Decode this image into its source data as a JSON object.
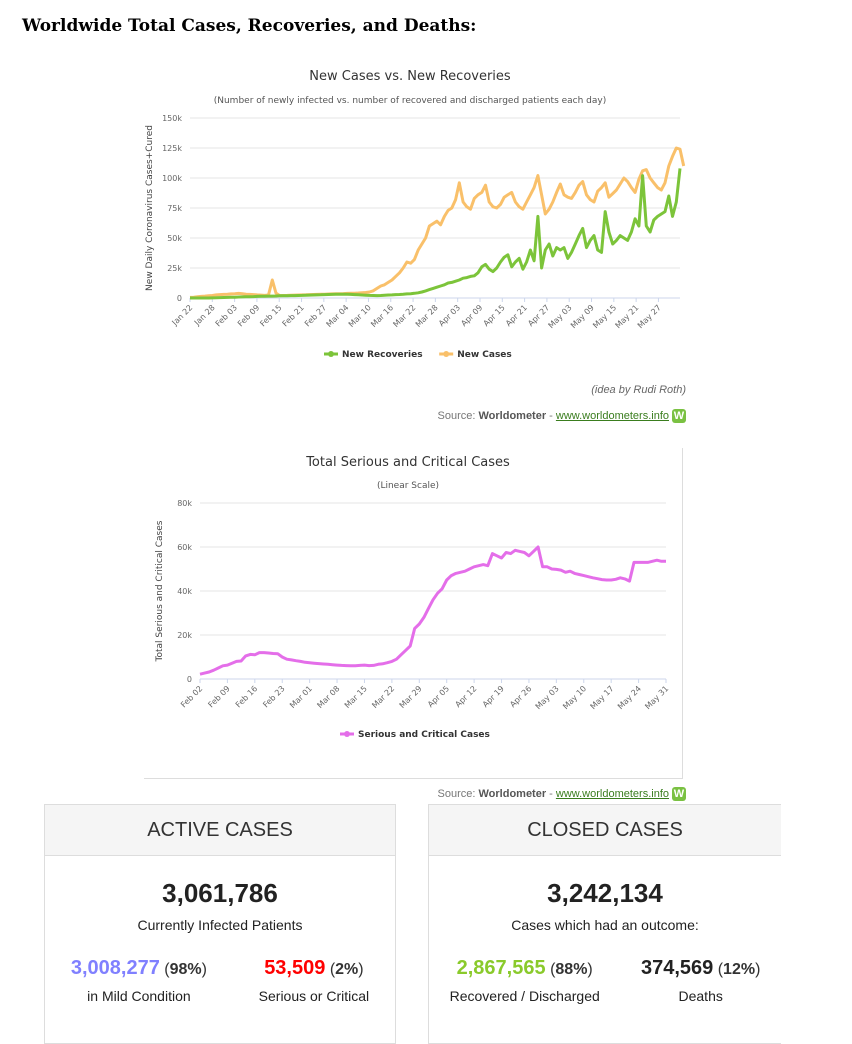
{
  "heading": "Worldwide Total Cases, Recoveries, and Deaths:",
  "chart_data": [
    {
      "type": "line",
      "title": "New Cases vs. New Recoveries",
      "subtitle": "(Number of newly infected vs. number of recovered and discharged patients each day)",
      "ylabel": "New Daily Coronavirus Cases+Cured",
      "xlabel": "",
      "ylim": [
        0,
        150000
      ],
      "yticks": [
        0,
        25000,
        50000,
        75000,
        100000,
        125000,
        150000
      ],
      "ytick_labels": [
        "0",
        "25k",
        "50k",
        "75k",
        "100k",
        "125k",
        "150k"
      ],
      "xtick_labels": [
        "Jan 22",
        "Jan 28",
        "Feb 03",
        "Feb 09",
        "Feb 15",
        "Feb 21",
        "Feb 27",
        "Mar 04",
        "Mar 10",
        "Mar 16",
        "Mar 22",
        "Mar 28",
        "Apr 03",
        "Apr 09",
        "Apr 15",
        "Apr 21",
        "Apr 27",
        "May 03",
        "May 09",
        "May 15",
        "May 21",
        "May 27"
      ],
      "grid": true,
      "legend": "bottom-center",
      "series": [
        {
          "name": "New Recoveries",
          "color": "#7cc43a",
          "values": [
            0,
            0,
            0,
            0,
            0,
            0,
            100,
            200,
            300,
            400,
            500,
            600,
            700,
            800,
            900,
            1000,
            1100,
            1200,
            1300,
            1500,
            1500,
            1600,
            1600,
            1700,
            1800,
            1800,
            1900,
            2000,
            2000,
            2100,
            2200,
            2300,
            2400,
            2500,
            2600,
            2700,
            2800,
            2900,
            3000,
            3100,
            3100,
            3200,
            3200,
            3000,
            2800,
            2700,
            2500,
            2300,
            2200,
            2100,
            2000,
            2100,
            2300,
            2500,
            2600,
            2800,
            2900,
            3100,
            3400,
            3600,
            3900,
            4300,
            5000,
            5900,
            7000,
            8000,
            9000,
            10000,
            11000,
            12500,
            13000,
            14000,
            15000,
            16500,
            17000,
            18000,
            18500,
            21000,
            26000,
            28000,
            24000,
            22000,
            25000,
            30000,
            34000,
            36000,
            26000,
            30000,
            33000,
            24000,
            30000,
            40000,
            31000,
            68000,
            25000,
            40000,
            45000,
            35000,
            42000,
            40000,
            42000,
            33000,
            38000,
            45000,
            52000,
            58000,
            42000,
            48000,
            52000,
            40000,
            38000,
            72000,
            55000,
            45000,
            48000,
            52000,
            50000,
            48000,
            55000,
            66000,
            60000,
            102000,
            60000,
            55000,
            65000,
            68000,
            70000,
            72000,
            85000,
            68000,
            80000,
            108000
          ]
        },
        {
          "name": "New Cases",
          "color": "#f9c06a",
          "values": [
            500,
            700,
            1000,
            1300,
            1600,
            1900,
            2100,
            2600,
            2800,
            3000,
            3200,
            3400,
            3600,
            3800,
            3500,
            3200,
            3000,
            2800,
            2600,
            2400,
            2200,
            2500,
            15000,
            4000,
            2000,
            2100,
            2200,
            2300,
            2400,
            2500,
            2600,
            2700,
            2800,
            2900,
            3000,
            3100,
            3200,
            3300,
            3400,
            3500,
            3600,
            3700,
            3800,
            3900,
            4000,
            4200,
            4400,
            4600,
            5000,
            6000,
            8000,
            10000,
            11000,
            13000,
            15000,
            18000,
            21000,
            25000,
            30000,
            29000,
            32000,
            40000,
            45000,
            50000,
            60000,
            62000,
            64000,
            61000,
            68000,
            73000,
            75000,
            82000,
            96000,
            80000,
            76000,
            74000,
            83000,
            86000,
            88000,
            94000,
            80000,
            76000,
            75000,
            78000,
            84000,
            86000,
            88000,
            80000,
            76000,
            74000,
            80000,
            86000,
            92000,
            102000,
            86000,
            70000,
            74000,
            80000,
            88000,
            95000,
            86000,
            84000,
            83000,
            88000,
            94000,
            97000,
            86000,
            82000,
            80000,
            89000,
            92000,
            96000,
            84000,
            87000,
            90000,
            95000,
            100000,
            97000,
            92000,
            88000,
            99000,
            106000,
            107000,
            100000,
            96000,
            92000,
            90000,
            96000,
            110000,
            118000,
            125000,
            124000,
            110000
          ]
        }
      ],
      "annotation": "(idea by Rudi Roth)"
    },
    {
      "type": "line",
      "title": "Total Serious and Critical Cases",
      "subtitle": "(Linear Scale)",
      "ylabel": "Total Serious and Critical Cases",
      "xlabel": "",
      "ylim": [
        0,
        80000
      ],
      "yticks": [
        0,
        20000,
        40000,
        60000,
        80000
      ],
      "ytick_labels": [
        "0",
        "20k",
        "40k",
        "60k",
        "80k"
      ],
      "xtick_labels": [
        "Feb 02",
        "Feb 09",
        "Feb 16",
        "Feb 23",
        "Mar 01",
        "Mar 08",
        "Mar 15",
        "Mar 22",
        "Mar 29",
        "Apr 05",
        "Apr 12",
        "Apr 19",
        "Apr 26",
        "May 03",
        "May 10",
        "May 17",
        "May 24",
        "May 31"
      ],
      "grid": true,
      "legend": "bottom-center",
      "series": [
        {
          "name": "Serious and Critical Cases",
          "color": "#e46ee9",
          "values": [
            2200,
            2700,
            3200,
            4000,
            5000,
            6000,
            6300,
            7200,
            8000,
            8200,
            10500,
            11200,
            11000,
            12000,
            12000,
            11800,
            11600,
            11500,
            10000,
            9000,
            8700,
            8300,
            8000,
            7600,
            7400,
            7200,
            7000,
            6800,
            6700,
            6500,
            6300,
            6200,
            6100,
            6000,
            6000,
            6200,
            6300,
            6100,
            6200,
            6700,
            6900,
            7400,
            8000,
            9000,
            11000,
            13000,
            15000,
            23000,
            25000,
            28000,
            32000,
            36000,
            39000,
            41000,
            45000,
            47000,
            48000,
            48500,
            49000,
            50000,
            51000,
            51500,
            52000,
            51500,
            57000,
            56000,
            55000,
            57500,
            57000,
            58500,
            58000,
            57500,
            56000,
            58000,
            60000,
            51000,
            51000,
            50000,
            49800,
            49500,
            48500,
            49000,
            48000,
            47500,
            47000,
            46500,
            46000,
            45600,
            45200,
            45000,
            45000,
            45300,
            46000,
            45500,
            44500,
            53000,
            53000,
            53000,
            53000,
            53500,
            54000,
            53500,
            53509
          ]
        }
      ]
    }
  ],
  "source": {
    "prefix": "Source: ",
    "name": "Worldometer",
    "sep": " - ",
    "link": "www.worldometers.info",
    "logo_letter": "W"
  },
  "active": {
    "header": "ACTIVE CASES",
    "total": "3,061,786",
    "total_label": "Currently Infected Patients",
    "mild_num": "3,008,277",
    "mild_pct": "98%",
    "mild_label": "in Mild Condition",
    "mild_color": "#8080ff",
    "serious_num": "53,509",
    "serious_pct": "2%",
    "serious_label": "Serious or Critical",
    "serious_color": "#ff0000"
  },
  "closed": {
    "header": "CLOSED CASES",
    "total": "3,242,134",
    "total_label": "Cases which had an outcome:",
    "recovered_num": "2,867,565",
    "recovered_pct": "88%",
    "recovered_label": "Recovered / Discharged",
    "recovered_color": "#8ACA2B",
    "deaths_num": "374,569",
    "deaths_pct": "12%",
    "deaths_label": "Deaths",
    "deaths_color": "#222222"
  }
}
